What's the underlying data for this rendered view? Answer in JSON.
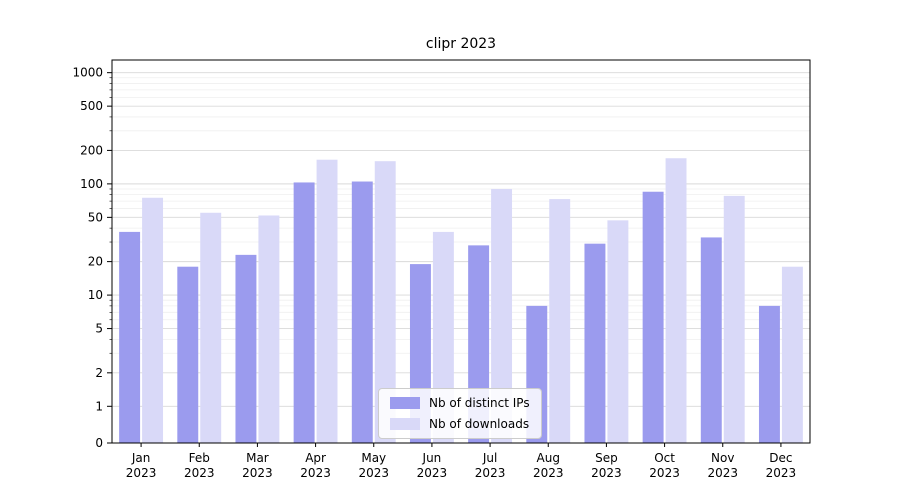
{
  "figure": {
    "background": "#ffffff"
  },
  "chart_data": {
    "type": "bar",
    "title": "clipr 2023",
    "categories": [
      "Jan 2023",
      "Feb 2023",
      "Mar 2023",
      "Apr 2023",
      "May 2023",
      "Jun 2023",
      "Jul 2023",
      "Aug 2023",
      "Sep 2023",
      "Oct 2023",
      "Nov 2023",
      "Dec 2023"
    ],
    "series": [
      {
        "name": "Nb of distinct IPs",
        "color": "#9b9bee",
        "values": [
          37,
          18,
          23,
          103,
          105,
          19,
          28,
          8,
          29,
          85,
          33,
          8
        ]
      },
      {
        "name": "Nb of downloads",
        "color": "#d9d9f8",
        "values": [
          75,
          55,
          52,
          165,
          160,
          37,
          90,
          73,
          47,
          170,
          78,
          18
        ]
      }
    ],
    "yscale": "symlog",
    "yticks": [
      0,
      1,
      2,
      5,
      10,
      20,
      50,
      100,
      200,
      500,
      1000
    ],
    "ylim": [
      0,
      1300
    ],
    "xlabel": "",
    "ylabel": "",
    "grid": true,
    "legend_position": "lower center",
    "colors": {
      "axis": "#000000",
      "major_grid": "#d9d9d9",
      "minor_grid": "#efefef",
      "legend_border": "#cccccc"
    }
  }
}
